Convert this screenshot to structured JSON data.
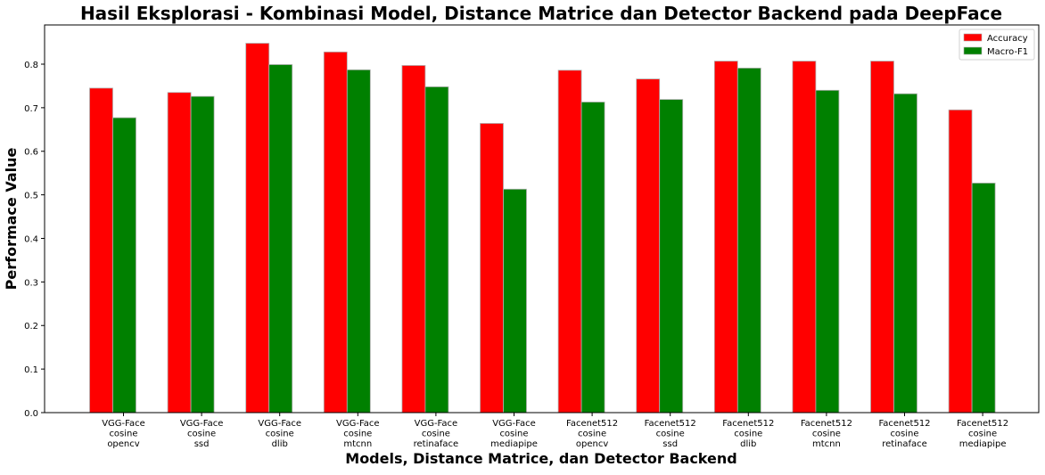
{
  "chart_data": {
    "type": "bar",
    "title": "Hasil Eksplorasi - Kombinasi Model, Distance Matrice dan Detector Backend pada DeepFace",
    "xlabel": "Models, Distance Matrice, dan Detector Backend",
    "ylabel": "Performace Value",
    "ylim": [
      0,
      0.89
    ],
    "yticks": [
      "0.0",
      "0.1",
      "0.2",
      "0.3",
      "0.4",
      "0.5",
      "0.6",
      "0.7",
      "0.8"
    ],
    "grid": false,
    "legend_position": "top-right",
    "categories": [
      [
        "VGG-Face",
        "cosine",
        "opencv"
      ],
      [
        "VGG-Face",
        "cosine",
        "ssd"
      ],
      [
        "VGG-Face",
        "cosine",
        "dlib"
      ],
      [
        "VGG-Face",
        "cosine",
        "mtcnn"
      ],
      [
        "VGG-Face",
        "cosine",
        "retinaface"
      ],
      [
        "VGG-Face",
        "cosine",
        "mediapipe"
      ],
      [
        "Facenet512",
        "cosine",
        "opencv"
      ],
      [
        "Facenet512",
        "cosine",
        "ssd"
      ],
      [
        "Facenet512",
        "cosine",
        "dlib"
      ],
      [
        "Facenet512",
        "cosine",
        "mtcnn"
      ],
      [
        "Facenet512",
        "cosine",
        "retinaface"
      ],
      [
        "Facenet512",
        "cosine",
        "mediapipe"
      ]
    ],
    "series": [
      {
        "name": "Accuracy",
        "color": "#ff0000",
        "values": [
          0.745,
          0.735,
          0.848,
          0.828,
          0.797,
          0.664,
          0.786,
          0.766,
          0.807,
          0.807,
          0.807,
          0.695
        ]
      },
      {
        "name": "Macro-F1",
        "color": "#008000",
        "values": [
          0.677,
          0.726,
          0.799,
          0.787,
          0.748,
          0.513,
          0.713,
          0.719,
          0.791,
          0.74,
          0.732,
          0.527
        ]
      }
    ]
  }
}
